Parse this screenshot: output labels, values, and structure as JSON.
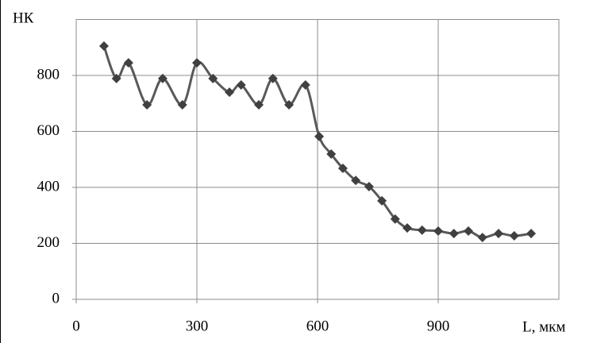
{
  "chart_data": {
    "type": "line",
    "y_label": "НК",
    "x_label": "L, мкм",
    "x": [
      69,
      100,
      130,
      176,
      215,
      264,
      300,
      340,
      381,
      410,
      454,
      489,
      529,
      570,
      604,
      634,
      663,
      695,
      728,
      760,
      793,
      823,
      860,
      900,
      939,
      975,
      1010,
      1050,
      1089,
      1131
    ],
    "series": [
      {
        "color": "#595959",
        "values": [
          905,
          789,
          845,
          695,
          789,
          695,
          845,
          789,
          740,
          766,
          695,
          789,
          695,
          766,
          582,
          519,
          468,
          425,
          403,
          352,
          287,
          255,
          247,
          244,
          235,
          244,
          221,
          235,
          227,
          235
        ]
      }
    ],
    "xlim": [
      0,
      1200
    ],
    "xticks": [
      0,
      300,
      600,
      900
    ],
    "ylim": [
      0,
      1000
    ],
    "yticks": [
      0,
      200,
      400,
      600,
      800
    ],
    "grid": true
  }
}
